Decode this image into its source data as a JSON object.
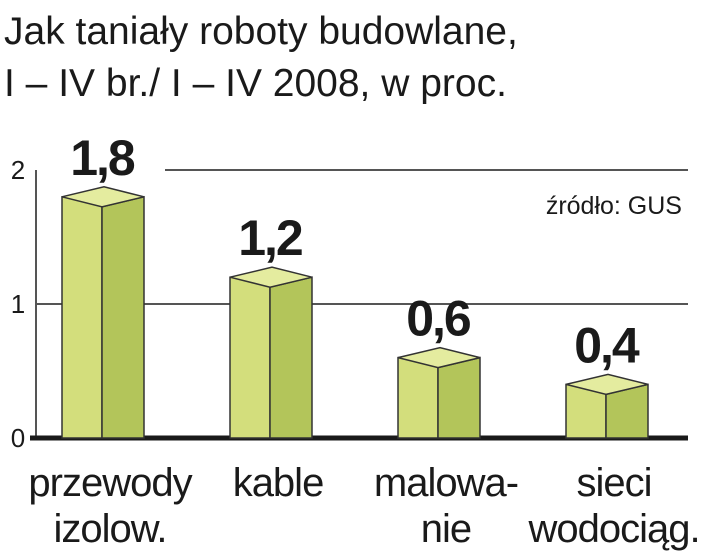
{
  "chart_data": {
    "type": "bar3d",
    "title": [
      "Jak taniały roboty budowlane,",
      "I – IV br./ I – IV 2008, w proc."
    ],
    "source": "źródło: GUS",
    "categories": [
      [
        "przewody",
        "izolow."
      ],
      [
        "kable"
      ],
      [
        "malowa-",
        "nie"
      ],
      [
        "sieci",
        "wodociąg."
      ]
    ],
    "values": [
      1.8,
      1.2,
      0.6,
      0.4
    ],
    "value_labels": [
      "1,8",
      "1,2",
      "0,6",
      "0,4"
    ],
    "value_label_colors": [
      "#c8102e",
      "#1a1a1a",
      "#1a1a1a",
      "#1a1a1a"
    ],
    "color": "#d3de7c",
    "ylim": [
      0,
      2
    ],
    "yticks": [
      0,
      1,
      2
    ],
    "grid": true
  }
}
